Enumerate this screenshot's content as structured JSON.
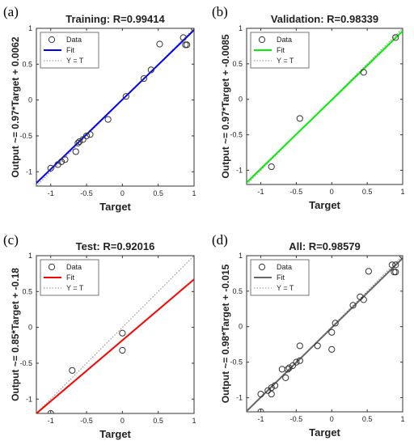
{
  "chart_data": [
    {
      "type": "scatter",
      "panel_label": "(a)",
      "title": "Training: R=0.99414",
      "xlabel": "Target",
      "ylabel": "Output ~= 0.97*Target + 0.0062",
      "xlim": [
        -1.2,
        1.0
      ],
      "ylim": [
        -1.2,
        1.0
      ],
      "xticks": [
        "-1",
        "-0.5",
        "0",
        "0.5",
        "1"
      ],
      "yticks": [
        "-1",
        "-0.5",
        "0",
        "0.5",
        "1"
      ],
      "grid": false,
      "legend": {
        "position": "top-left",
        "entries": [
          "Data",
          "Fit",
          "Y = T"
        ]
      },
      "fit": {
        "slope": 0.97,
        "intercept": 0.0062,
        "color": "#0000ff"
      },
      "points": [
        {
          "x": -1.0,
          "y": -0.95
        },
        {
          "x": -0.9,
          "y": -0.9
        },
        {
          "x": -0.85,
          "y": -0.86
        },
        {
          "x": -0.8,
          "y": -0.83
        },
        {
          "x": -0.65,
          "y": -0.72
        },
        {
          "x": -0.62,
          "y": -0.6
        },
        {
          "x": -0.6,
          "y": -0.58
        },
        {
          "x": -0.55,
          "y": -0.55
        },
        {
          "x": -0.5,
          "y": -0.5
        },
        {
          "x": -0.45,
          "y": -0.48
        },
        {
          "x": -0.2,
          "y": -0.27
        },
        {
          "x": 0.05,
          "y": 0.05
        },
        {
          "x": 0.3,
          "y": 0.3
        },
        {
          "x": 0.4,
          "y": 0.42
        },
        {
          "x": 0.52,
          "y": 0.78
        },
        {
          "x": 0.85,
          "y": 0.87
        },
        {
          "x": 0.88,
          "y": 0.77
        },
        {
          "x": 0.9,
          "y": 0.77
        },
        {
          "x": 1.0,
          "y": 1.0
        }
      ]
    },
    {
      "type": "scatter",
      "panel_label": "(b)",
      "title": "Validation: R=0.98339",
      "xlabel": "Target",
      "ylabel": "Output ~= 0.97*Target + -0.0085",
      "xlim": [
        -1.2,
        1.0
      ],
      "ylim": [
        -1.2,
        1.0
      ],
      "xticks": [
        "-1",
        "-0.5",
        "0",
        "0.5",
        "1"
      ],
      "yticks": [
        "-1",
        "-0.5",
        "0",
        "0.5",
        "1"
      ],
      "grid": false,
      "legend": {
        "position": "top-left",
        "entries": [
          "Data",
          "Fit",
          "Y = T"
        ]
      },
      "fit": {
        "slope": 0.97,
        "intercept": -0.0085,
        "color": "#00ee00"
      },
      "points": [
        {
          "x": -0.85,
          "y": -0.95
        },
        {
          "x": -0.45,
          "y": -0.27
        },
        {
          "x": 0.45,
          "y": 0.38
        },
        {
          "x": 0.9,
          "y": 0.87
        }
      ]
    },
    {
      "type": "scatter",
      "panel_label": "(c)",
      "title": "Test: R=0.92016",
      "xlabel": "Target",
      "ylabel": "Output ~= 0.85*Target + -0.18",
      "xlim": [
        -1.2,
        1.0
      ],
      "ylim": [
        -1.2,
        1.0
      ],
      "xticks": [
        "-1",
        "-0.5",
        "0",
        "0.5",
        "1"
      ],
      "yticks": [
        "-1",
        "-0.5",
        "0",
        "0.5",
        "1"
      ],
      "grid": false,
      "legend": {
        "position": "top-left",
        "entries": [
          "Data",
          "Fit",
          "Y = T"
        ]
      },
      "fit": {
        "slope": 0.85,
        "intercept": -0.18,
        "color": "#ff0000"
      },
      "points": [
        {
          "x": -1.0,
          "y": -1.2
        },
        {
          "x": -0.7,
          "y": -0.6
        },
        {
          "x": 0.0,
          "y": -0.08
        },
        {
          "x": 0.0,
          "y": -0.32
        }
      ]
    },
    {
      "type": "scatter",
      "panel_label": "(d)",
      "title": "All: R=0.98579",
      "xlabel": "Target",
      "ylabel": "Output ~= 0.98*Target + -0.015",
      "xlim": [
        -1.2,
        1.0
      ],
      "ylim": [
        -1.2,
        1.0
      ],
      "xticks": [
        "-1",
        "-0.5",
        "0",
        "0.5",
        "1"
      ],
      "yticks": [
        "-1",
        "-0.5",
        "0",
        "0.5",
        "1"
      ],
      "grid": false,
      "legend": {
        "position": "top-left",
        "entries": [
          "Data",
          "Fit",
          "Y = T"
        ]
      },
      "fit": {
        "slope": 0.98,
        "intercept": -0.015,
        "color": "#666666"
      },
      "points": [
        {
          "x": -1.0,
          "y": -1.2
        },
        {
          "x": -1.0,
          "y": -0.95
        },
        {
          "x": -0.9,
          "y": -0.9
        },
        {
          "x": -0.85,
          "y": -0.95
        },
        {
          "x": -0.85,
          "y": -0.86
        },
        {
          "x": -0.8,
          "y": -0.83
        },
        {
          "x": -0.7,
          "y": -0.6
        },
        {
          "x": -0.65,
          "y": -0.72
        },
        {
          "x": -0.62,
          "y": -0.6
        },
        {
          "x": -0.6,
          "y": -0.58
        },
        {
          "x": -0.55,
          "y": -0.55
        },
        {
          "x": -0.5,
          "y": -0.5
        },
        {
          "x": -0.45,
          "y": -0.48
        },
        {
          "x": -0.45,
          "y": -0.27
        },
        {
          "x": -0.2,
          "y": -0.27
        },
        {
          "x": 0.0,
          "y": -0.08
        },
        {
          "x": 0.0,
          "y": -0.32
        },
        {
          "x": 0.05,
          "y": 0.05
        },
        {
          "x": 0.3,
          "y": 0.3
        },
        {
          "x": 0.4,
          "y": 0.42
        },
        {
          "x": 0.45,
          "y": 0.38
        },
        {
          "x": 0.52,
          "y": 0.78
        },
        {
          "x": 0.85,
          "y": 0.87
        },
        {
          "x": 0.88,
          "y": 0.77
        },
        {
          "x": 0.9,
          "y": 0.77
        },
        {
          "x": 0.9,
          "y": 0.87
        },
        {
          "x": 1.0,
          "y": 1.0
        }
      ]
    }
  ]
}
